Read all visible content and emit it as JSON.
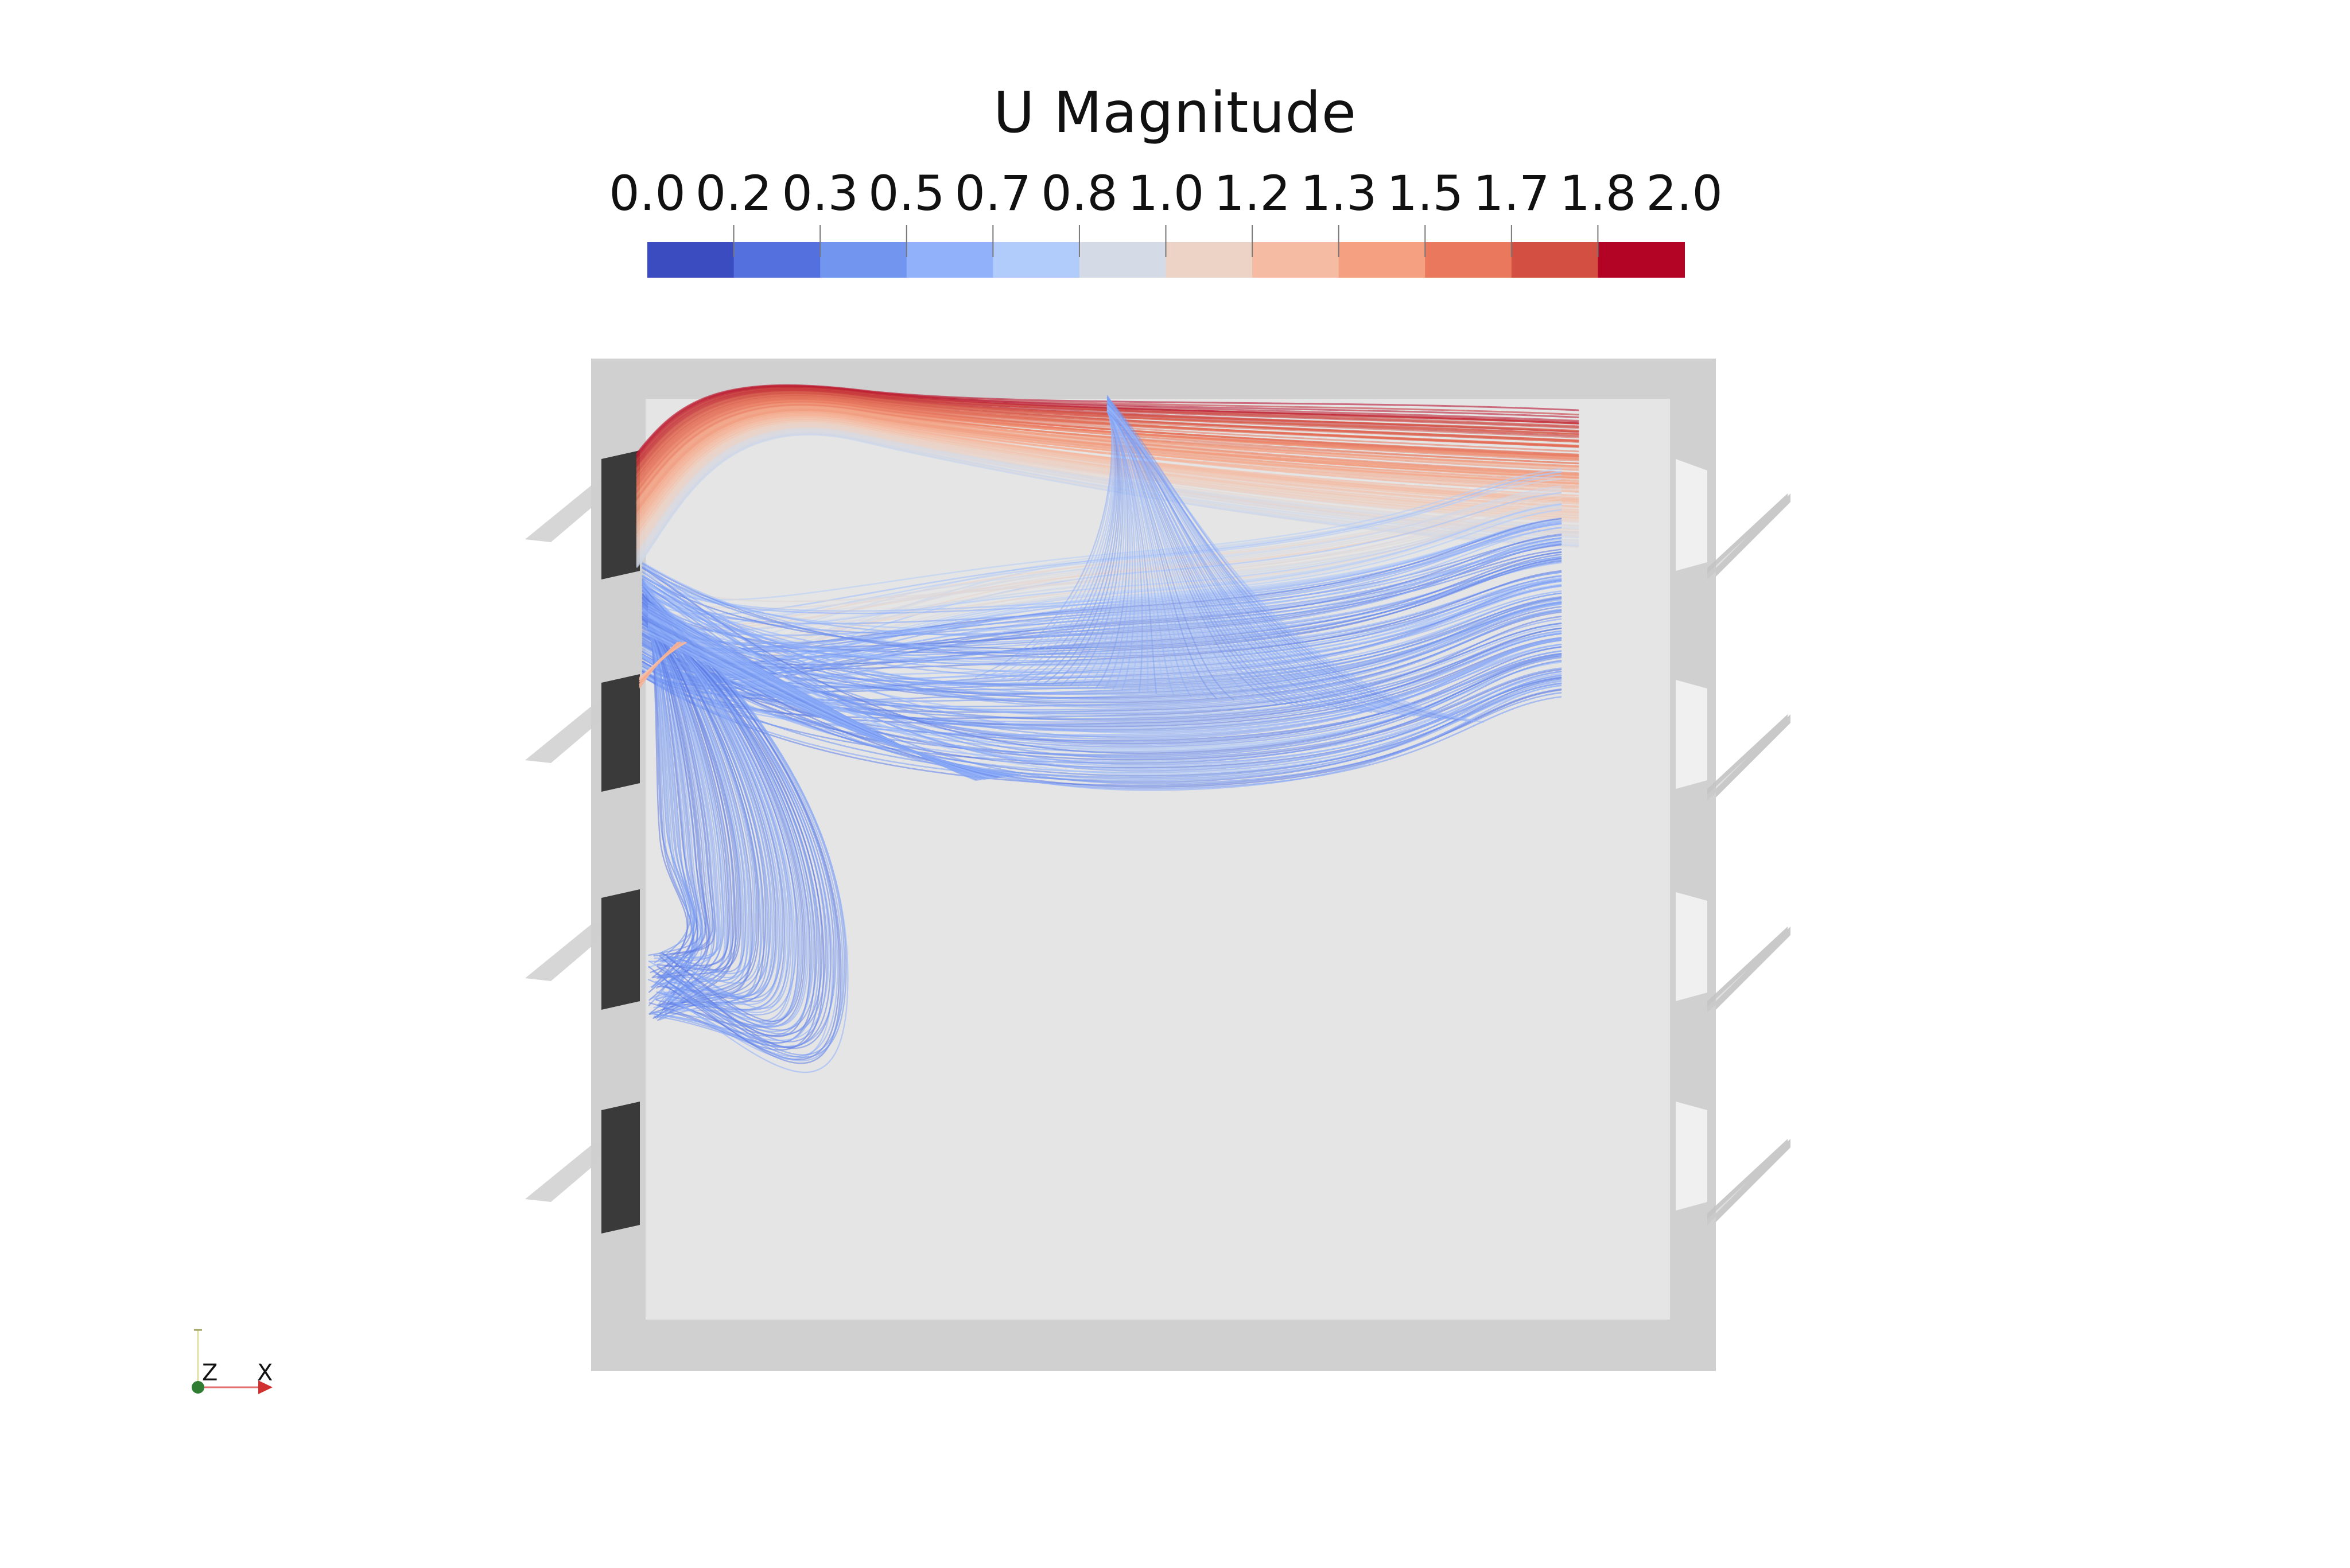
{
  "legend": {
    "title": "U Magnitude",
    "ticks": [
      "0.0",
      "0.2",
      "0.3",
      "0.5",
      "0.7",
      "0.8",
      "1.0",
      "1.2",
      "1.3",
      "1.5",
      "1.7",
      "1.8",
      "2.0"
    ],
    "range": [
      0.0,
      2.0
    ],
    "colors": [
      "#3b4cc0",
      "#5470de",
      "#7295f0",
      "#91b1fb",
      "#b1cbfa",
      "#d5dbe6",
      "#ecd3c6",
      "#f5bca3",
      "#f4a081",
      "#e9785d",
      "#d24f42",
      "#b40426"
    ]
  },
  "orientation_axes": {
    "z_label": "Z",
    "x_label": "X"
  },
  "scene": {
    "colormap": "Cool to Warm",
    "room_wall_color": "#d0d0d0",
    "room_interior_color": "#e5e5e5",
    "opening_color": "#3a3a3a"
  }
}
